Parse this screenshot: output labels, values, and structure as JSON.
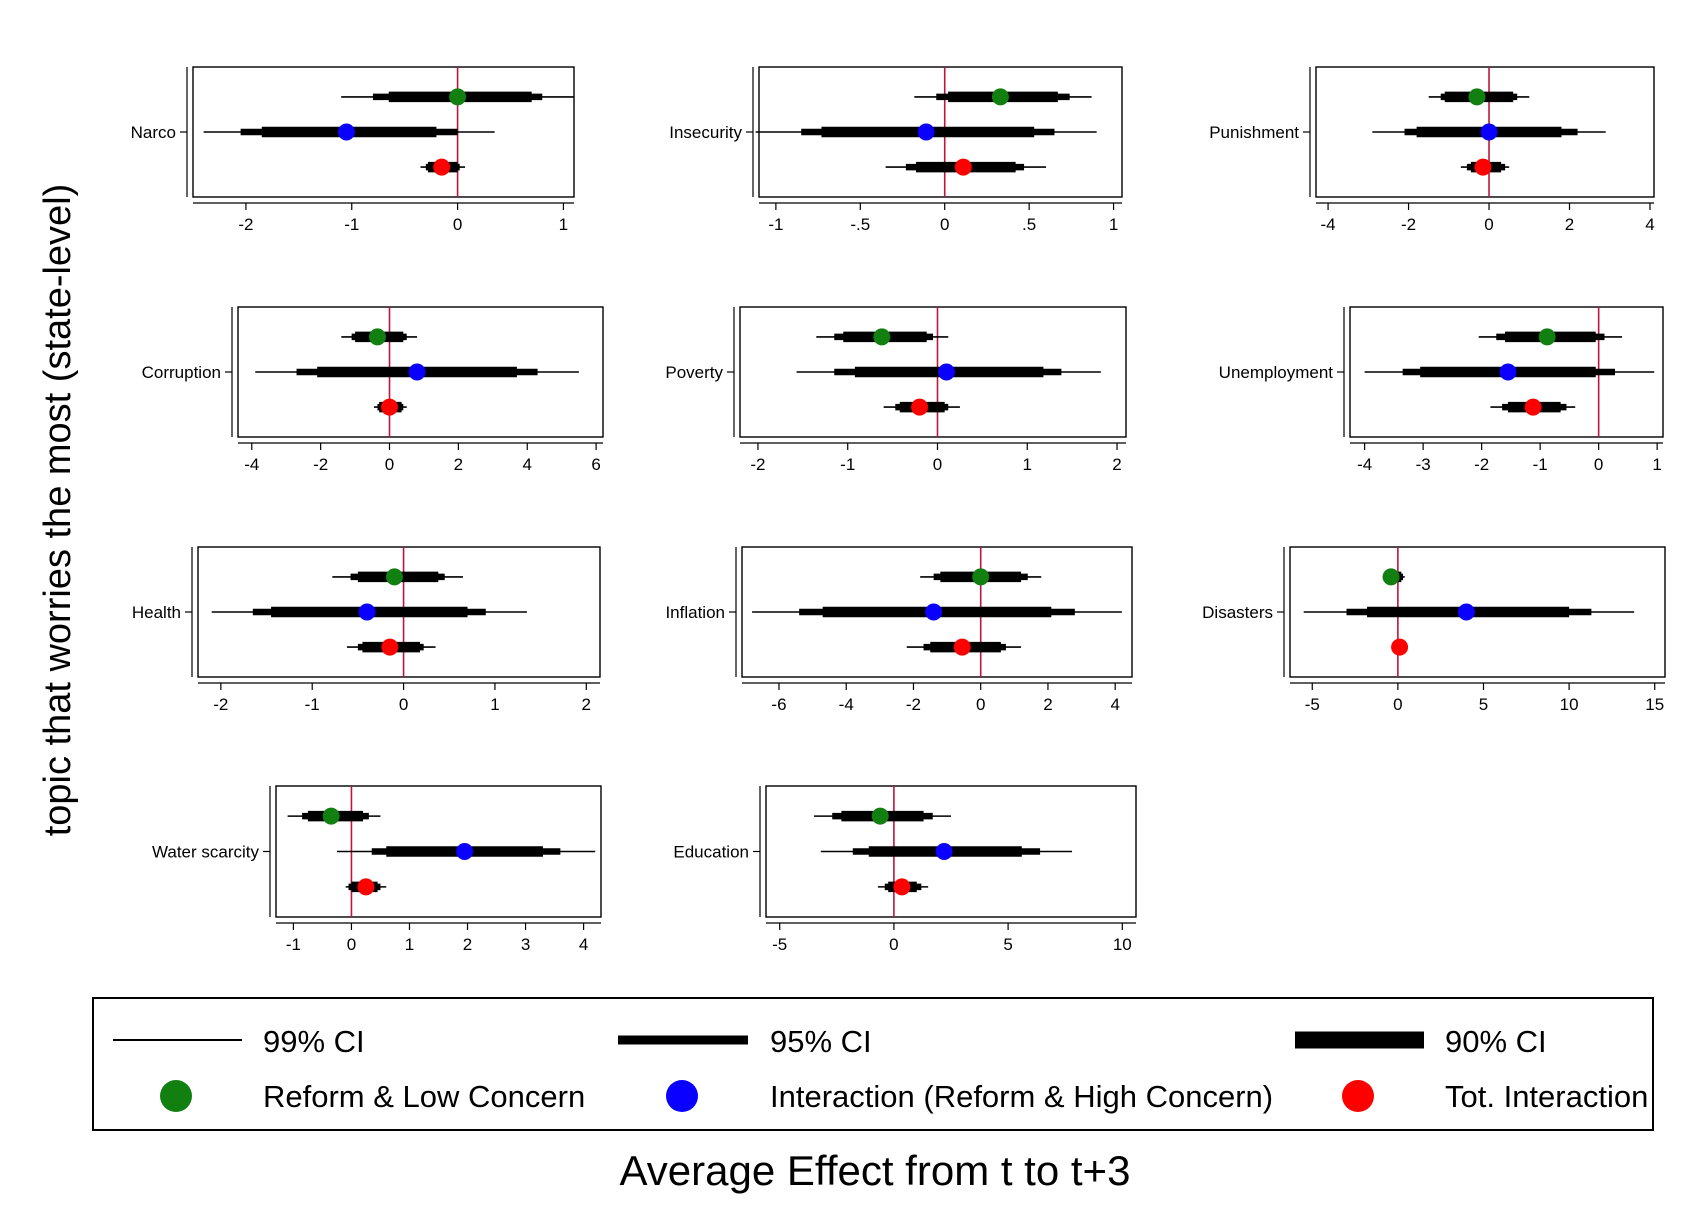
{
  "figure": {
    "ylabel": "topic that worries the most (state-level)",
    "xlabel": "Average Effect from t to t+3"
  },
  "legend": {
    "ci_labels": [
      "99% CI",
      "95% CI",
      "90% CI"
    ],
    "point_labels": [
      "Reform & Low Concern",
      "Interaction (Reform & High Concern)",
      "Tot. Interaction"
    ]
  },
  "colors": {
    "reform_low": "#118011",
    "interaction": "#0a00ff",
    "total": "#ff0000",
    "zero_line": "#c0143c",
    "ci": "#000000"
  },
  "chart_data": [
    {
      "type": "scatter",
      "label": "Narco",
      "xlim": [
        -2.5,
        1.1
      ],
      "ticks": [
        -2,
        -1,
        0,
        1
      ],
      "tick_labels": [
        "-2",
        "-1",
        "0",
        "1"
      ],
      "series": [
        {
          "name": "Reform & Low Concern",
          "point": 0.0,
          "ci99": [
            -1.1,
            1.1
          ],
          "ci95": [
            -0.8,
            0.8
          ],
          "ci90": [
            -0.65,
            0.7
          ]
        },
        {
          "name": "Interaction (Reform & High Concern)",
          "point": -1.05,
          "ci99": [
            -2.4,
            0.35
          ],
          "ci95": [
            -2.05,
            0.0
          ],
          "ci90": [
            -1.85,
            -0.2
          ]
        },
        {
          "name": "Tot. Interaction",
          "point": -0.15,
          "ci99": [
            -0.35,
            0.07
          ],
          "ci95": [
            -0.3,
            0.02
          ],
          "ci90": [
            -0.28,
            0.0
          ]
        }
      ]
    },
    {
      "type": "scatter",
      "label": "Insecurity",
      "xlim": [
        -1.1,
        1.05
      ],
      "ticks": [
        -1,
        -0.5,
        0,
        0.5,
        1
      ],
      "tick_labels": [
        "-1",
        "-.5",
        "0",
        ".5",
        "1"
      ],
      "series": [
        {
          "name": "Reform & Low Concern",
          "point": 0.33,
          "ci99": [
            -0.18,
            0.87
          ],
          "ci95": [
            -0.05,
            0.74
          ],
          "ci90": [
            0.02,
            0.67
          ]
        },
        {
          "name": "Interaction (Reform & High Concern)",
          "point": -0.11,
          "ci99": [
            -1.12,
            0.9
          ],
          "ci95": [
            -0.85,
            0.65
          ],
          "ci90": [
            -0.73,
            0.53
          ]
        },
        {
          "name": "Tot. Interaction",
          "point": 0.11,
          "ci99": [
            -0.35,
            0.6
          ],
          "ci95": [
            -0.23,
            0.47
          ],
          "ci90": [
            -0.17,
            0.42
          ]
        }
      ]
    },
    {
      "type": "scatter",
      "label": "Punishment",
      "xlim": [
        -4.3,
        4.1
      ],
      "ticks": [
        -4,
        -2,
        0,
        2,
        4
      ],
      "tick_labels": [
        "-4",
        "-2",
        "0",
        "2",
        "4"
      ],
      "series": [
        {
          "name": "Reform & Low Concern",
          "point": -0.3,
          "ci99": [
            -1.5,
            1.0
          ],
          "ci95": [
            -1.2,
            0.7
          ],
          "ci90": [
            -1.1,
            0.6
          ]
        },
        {
          "name": "Interaction (Reform & High Concern)",
          "point": 0.0,
          "ci99": [
            -2.9,
            2.9
          ],
          "ci95": [
            -2.1,
            2.2
          ],
          "ci90": [
            -1.8,
            1.8
          ]
        },
        {
          "name": "Tot. Interaction",
          "point": -0.15,
          "ci99": [
            -0.7,
            0.5
          ],
          "ci95": [
            -0.55,
            0.4
          ],
          "ci90": [
            -0.45,
            0.3
          ]
        }
      ]
    },
    {
      "type": "scatter",
      "label": "Corruption",
      "xlim": [
        -4.4,
        6.2
      ],
      "ticks": [
        -4,
        -2,
        0,
        2,
        4,
        6
      ],
      "tick_labels": [
        "-4",
        "-2",
        "0",
        "2",
        "4",
        "6"
      ],
      "series": [
        {
          "name": "Reform & Low Concern",
          "point": -0.35,
          "ci99": [
            -1.4,
            0.8
          ],
          "ci95": [
            -1.1,
            0.5
          ],
          "ci90": [
            -1.0,
            0.4
          ]
        },
        {
          "name": "Interaction (Reform & High Concern)",
          "point": 0.8,
          "ci99": [
            -3.9,
            5.5
          ],
          "ci95": [
            -2.7,
            4.3
          ],
          "ci90": [
            -2.1,
            3.7
          ]
        },
        {
          "name": "Tot. Interaction",
          "point": 0.0,
          "ci99": [
            -0.45,
            0.5
          ],
          "ci95": [
            -0.35,
            0.4
          ],
          "ci90": [
            -0.3,
            0.35
          ]
        }
      ]
    },
    {
      "type": "scatter",
      "label": "Poverty",
      "xlim": [
        -2.2,
        2.1
      ],
      "ticks": [
        -2,
        -1,
        0,
        1,
        2
      ],
      "tick_labels": [
        "-2",
        "-1",
        "0",
        "1",
        "2"
      ],
      "series": [
        {
          "name": "Reform & Low Concern",
          "point": -0.62,
          "ci99": [
            -1.35,
            0.12
          ],
          "ci95": [
            -1.15,
            -0.05
          ],
          "ci90": [
            -1.05,
            -0.12
          ]
        },
        {
          "name": "Interaction (Reform & High Concern)",
          "point": 0.1,
          "ci99": [
            -1.57,
            1.82
          ],
          "ci95": [
            -1.15,
            1.38
          ],
          "ci90": [
            -0.92,
            1.18
          ]
        },
        {
          "name": "Tot. Interaction",
          "point": -0.2,
          "ci99": [
            -0.6,
            0.25
          ],
          "ci95": [
            -0.47,
            0.12
          ],
          "ci90": [
            -0.42,
            0.08
          ]
        }
      ]
    },
    {
      "type": "scatter",
      "label": "Unemployment",
      "xlim": [
        -4.25,
        1.1
      ],
      "ticks": [
        -4,
        -3,
        -2,
        -1,
        0,
        1
      ],
      "tick_labels": [
        "-4",
        "-3",
        "-2",
        "-1",
        "0",
        "1"
      ],
      "series": [
        {
          "name": "Reform & Low Concern",
          "point": -0.88,
          "ci99": [
            -2.05,
            0.4
          ],
          "ci95": [
            -1.75,
            0.1
          ],
          "ci90": [
            -1.6,
            -0.05
          ]
        },
        {
          "name": "Interaction (Reform & High Concern)",
          "point": -1.55,
          "ci99": [
            -4.0,
            0.95
          ],
          "ci95": [
            -3.35,
            0.28
          ],
          "ci90": [
            -3.05,
            -0.05
          ]
        },
        {
          "name": "Tot. Interaction",
          "point": -1.12,
          "ci99": [
            -1.85,
            -0.4
          ],
          "ci95": [
            -1.65,
            -0.55
          ],
          "ci90": [
            -1.55,
            -0.65
          ]
        }
      ]
    },
    {
      "type": "scatter",
      "label": "Health",
      "xlim": [
        -2.25,
        2.15
      ],
      "ticks": [
        -2,
        -1,
        0,
        1,
        2
      ],
      "tick_labels": [
        "-2",
        "-1",
        "0",
        "1",
        "2"
      ],
      "series": [
        {
          "name": "Reform & Low Concern",
          "point": -0.1,
          "ci99": [
            -0.78,
            0.65
          ],
          "ci95": [
            -0.58,
            0.45
          ],
          "ci90": [
            -0.5,
            0.38
          ]
        },
        {
          "name": "Interaction (Reform & High Concern)",
          "point": -0.4,
          "ci99": [
            -2.1,
            1.35
          ],
          "ci95": [
            -1.65,
            0.9
          ],
          "ci90": [
            -1.45,
            0.7
          ]
        },
        {
          "name": "Tot. Interaction",
          "point": -0.15,
          "ci99": [
            -0.62,
            0.35
          ],
          "ci95": [
            -0.5,
            0.22
          ],
          "ci90": [
            -0.45,
            0.18
          ]
        }
      ]
    },
    {
      "type": "scatter",
      "label": "Inflation",
      "xlim": [
        -7.1,
        4.5
      ],
      "ticks": [
        -6,
        -4,
        -2,
        0,
        2,
        4
      ],
      "tick_labels": [
        "-6",
        "-4",
        "-2",
        "0",
        "2",
        "4"
      ],
      "series": [
        {
          "name": "Reform & Low Concern",
          "point": 0.0,
          "ci99": [
            -1.8,
            1.8
          ],
          "ci95": [
            -1.4,
            1.4
          ],
          "ci90": [
            -1.2,
            1.2
          ]
        },
        {
          "name": "Interaction (Reform & High Concern)",
          "point": -1.4,
          "ci99": [
            -6.8,
            4.2
          ],
          "ci95": [
            -5.4,
            2.8
          ],
          "ci90": [
            -4.7,
            2.1
          ]
        },
        {
          "name": "Tot. Interaction",
          "point": -0.55,
          "ci99": [
            -2.2,
            1.2
          ],
          "ci95": [
            -1.7,
            0.75
          ],
          "ci90": [
            -1.5,
            0.6
          ]
        }
      ]
    },
    {
      "type": "scatter",
      "label": "Disasters",
      "xlim": [
        -6.3,
        15.6
      ],
      "ticks": [
        -5,
        0,
        5,
        10,
        15
      ],
      "tick_labels": [
        "-5",
        "0",
        "5",
        "10",
        "15"
      ],
      "series": [
        {
          "name": "Reform & Low Concern",
          "point": -0.4,
          "ci99": [
            -0.8,
            0.4
          ],
          "ci95": [
            -0.7,
            0.3
          ],
          "ci90": [
            -0.6,
            0.2
          ]
        },
        {
          "name": "Interaction (Reform & High Concern)",
          "point": 4.0,
          "ci99": [
            -5.5,
            13.8
          ],
          "ci95": [
            -3.0,
            11.3
          ],
          "ci90": [
            -1.8,
            10.0
          ]
        },
        {
          "name": "Tot. Interaction",
          "point": 0.1,
          "ci99": [
            0.05,
            0.15
          ],
          "ci95": [
            0.05,
            0.15
          ],
          "ci90": [
            0.05,
            0.15
          ]
        }
      ]
    },
    {
      "type": "scatter",
      "label": "Water scarcity",
      "xlim": [
        -1.3,
        4.3
      ],
      "ticks": [
        -1,
        0,
        1,
        2,
        3,
        4
      ],
      "tick_labels": [
        "-1",
        "0",
        "1",
        "2",
        "3",
        "4"
      ],
      "series": [
        {
          "name": "Reform & Low Concern",
          "point": -0.35,
          "ci99": [
            -1.1,
            0.5
          ],
          "ci95": [
            -0.85,
            0.3
          ],
          "ci90": [
            -0.75,
            0.2
          ]
        },
        {
          "name": "Interaction (Reform & High Concern)",
          "point": 1.95,
          "ci99": [
            -0.25,
            4.2
          ],
          "ci95": [
            0.35,
            3.6
          ],
          "ci90": [
            0.6,
            3.3
          ]
        },
        {
          "name": "Tot. Interaction",
          "point": 0.25,
          "ci99": [
            -0.1,
            0.6
          ],
          "ci95": [
            -0.05,
            0.5
          ],
          "ci90": [
            0.0,
            0.45
          ]
        }
      ]
    },
    {
      "type": "scatter",
      "label": "Education",
      "xlim": [
        -5.6,
        10.6
      ],
      "ticks": [
        -5,
        0,
        5,
        10
      ],
      "tick_labels": [
        "-5",
        "0",
        "5",
        "10"
      ],
      "series": [
        {
          "name": "Reform & Low Concern",
          "point": -0.6,
          "ci99": [
            -3.5,
            2.5
          ],
          "ci95": [
            -2.7,
            1.7
          ],
          "ci90": [
            -2.3,
            1.3
          ]
        },
        {
          "name": "Interaction (Reform & High Concern)",
          "point": 2.2,
          "ci99": [
            -3.2,
            7.8
          ],
          "ci95": [
            -1.8,
            6.4
          ],
          "ci90": [
            -1.1,
            5.6
          ]
        },
        {
          "name": "Tot. Interaction",
          "point": 0.35,
          "ci99": [
            -0.7,
            1.5
          ],
          "ci95": [
            -0.4,
            1.2
          ],
          "ci90": [
            -0.25,
            1.0
          ]
        }
      ]
    }
  ]
}
